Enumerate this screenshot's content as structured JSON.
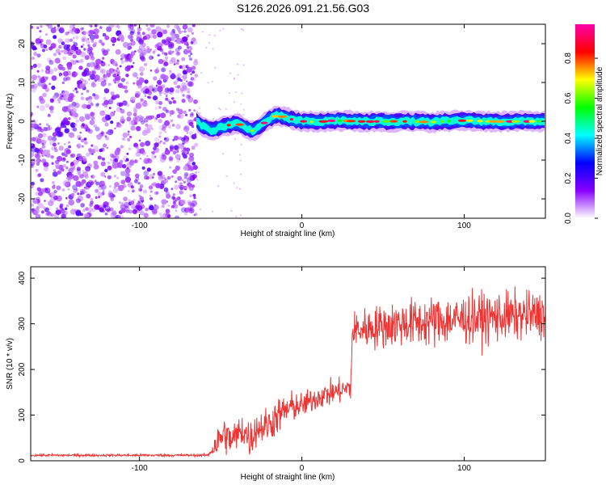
{
  "title": "S126.2026.091.21.56.G03",
  "chart_data": [
    {
      "type": "heatmap",
      "xlabel": "Height of straight line (km)",
      "ylabel": "Frequency (Hz)",
      "xlim": [
        -167,
        150
      ],
      "ylim": [
        -25,
        25
      ],
      "xticks": [
        -100,
        0,
        100
      ],
      "xtick_labels": [
        "-100",
        "0",
        "100"
      ],
      "yticks": [
        -20,
        -10,
        0,
        10,
        20
      ],
      "ytick_labels": [
        "-20",
        "-10",
        "0",
        "10",
        "20"
      ],
      "noise_region_x": [
        -167,
        -65
      ],
      "signal_start_x": -65,
      "signal_ridge": {
        "x": [
          -65,
          -60,
          -55,
          -50,
          -45,
          -40,
          -35,
          -30,
          -25,
          -20,
          -15,
          -10,
          -5,
          0,
          10,
          20,
          40,
          60,
          80,
          100,
          120,
          150
        ],
        "freq": [
          0.0,
          -1.5,
          -2.5,
          -1.5,
          -1.0,
          -0.5,
          -1.5,
          -2.5,
          -1.0,
          0.5,
          1.5,
          1.0,
          0.3,
          0.0,
          -0.2,
          0.2,
          -0.1,
          0.0,
          -0.2,
          0.2,
          -0.1,
          0.0
        ]
      },
      "colorbar": {
        "label": "Normalized spectral amplitude",
        "range": [
          0.0,
          0.97
        ],
        "ticks": [
          0.0,
          0.2,
          0.4,
          0.6,
          0.8
        ],
        "tick_labels": [
          "0.0",
          "0.2",
          "0.4",
          "0.6",
          "0.8"
        ],
        "colors": [
          "#ffffff",
          "#8800ff",
          "#0000ff",
          "#00ffff",
          "#00ff00",
          "#ffff00",
          "#ff0000",
          "#ff00aa"
        ]
      }
    },
    {
      "type": "line",
      "xlabel": "Height of straight line (km)",
      "ylabel": "SNR (10 * v/v)",
      "xlim": [
        -167,
        150
      ],
      "ylim": [
        0,
        425
      ],
      "xticks": [
        -100,
        0,
        100
      ],
      "xtick_labels": [
        "-100",
        "0",
        "100"
      ],
      "yticks": [
        0,
        100,
        200,
        300,
        400
      ],
      "ytick_labels": [
        "0",
        "100",
        "200",
        "300",
        "400"
      ],
      "color": "#ee3333",
      "series": [
        {
          "name": "SNR",
          "x": [
            -167,
            -58,
            -52,
            -48,
            -44,
            -40,
            -36,
            -32,
            -28,
            -24,
            -20,
            -16,
            -12,
            -8,
            -4,
            0,
            5,
            10,
            15,
            20,
            25,
            30,
            31,
            32,
            40,
            60,
            80,
            100,
            120,
            150
          ],
          "y": [
            12,
            12,
            40,
            60,
            45,
            55,
            70,
            45,
            70,
            75,
            80,
            95,
            105,
            115,
            120,
            120,
            130,
            140,
            145,
            150,
            155,
            160,
            270,
            285,
            290,
            300,
            305,
            310,
            315,
            320
          ],
          "spread": [
            3,
            3,
            40,
            45,
            40,
            40,
            45,
            45,
            40,
            40,
            45,
            45,
            40,
            40,
            35,
            30,
            30,
            30,
            30,
            30,
            30,
            30,
            45,
            45,
            50,
            55,
            60,
            60,
            60,
            55
          ]
        }
      ]
    }
  ]
}
